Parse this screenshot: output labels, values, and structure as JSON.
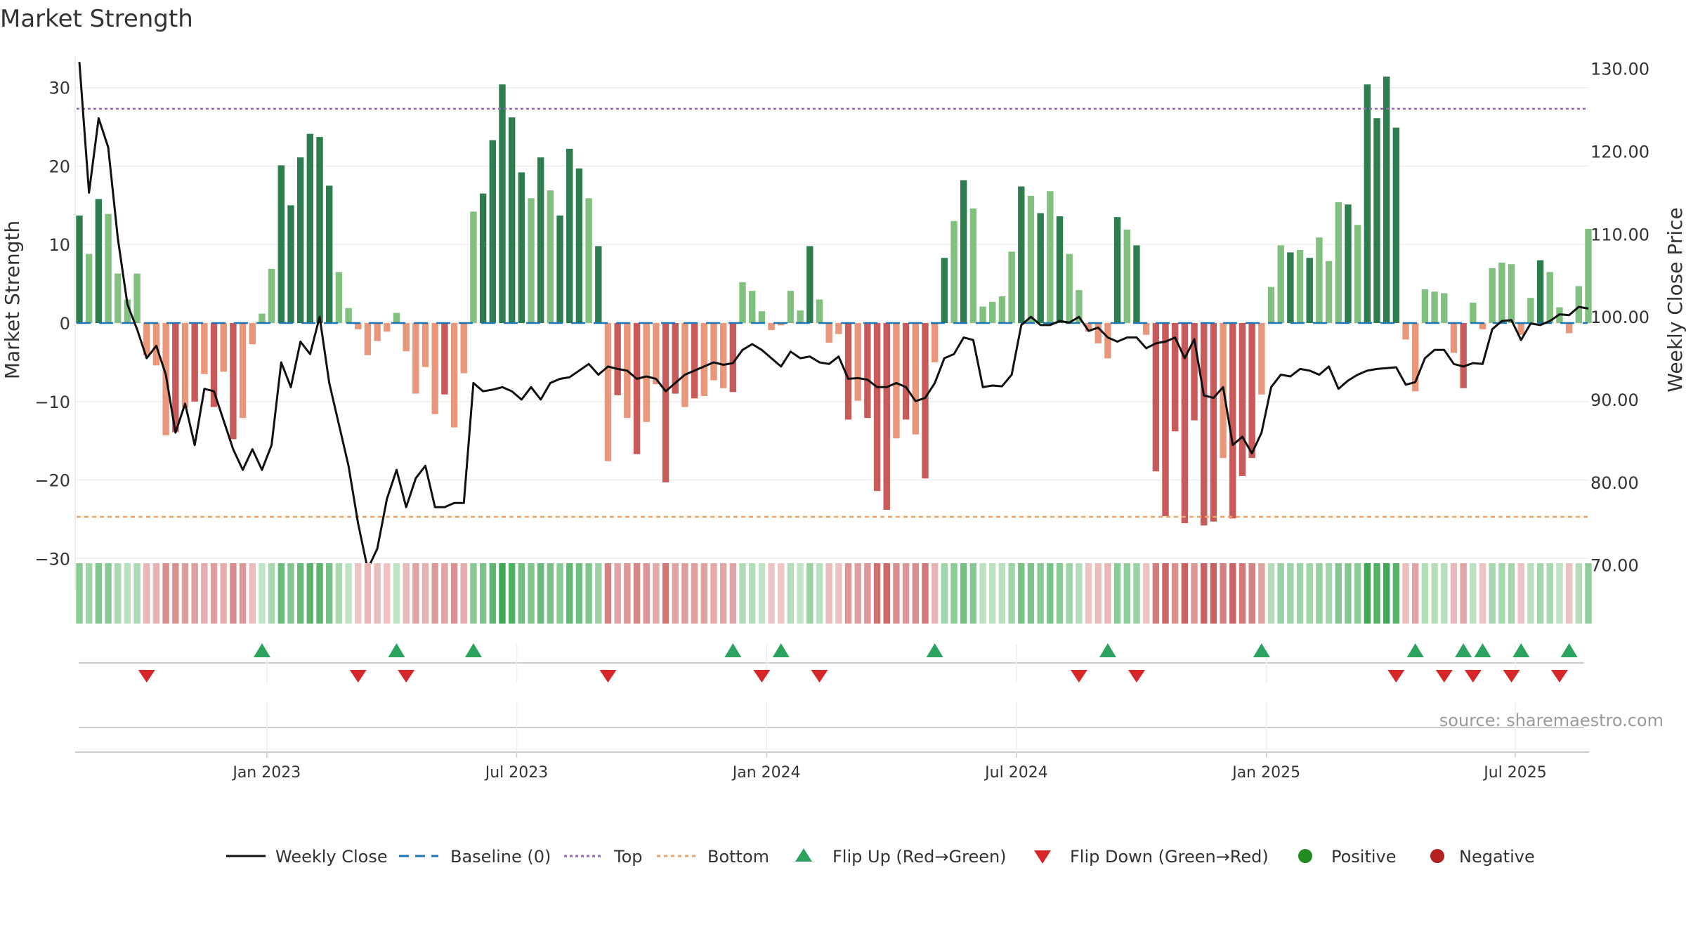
{
  "chart_data": {
    "type": "bar+line",
    "title": "Market Strength",
    "ylabel_left": "Market Strength",
    "ylabel_right": "Weekly Close Price",
    "ylim_left": [
      -34,
      34
    ],
    "ylim_right": [
      67.0,
      131.5
    ],
    "yticks_left": [
      "30",
      "20",
      "10",
      "0",
      "−10",
      "−20",
      "−30"
    ],
    "yticks_left_values": [
      30,
      20,
      10,
      0,
      -10,
      -20,
      -30
    ],
    "yticks_right": [
      "130.00",
      "120.00",
      "110.00",
      "100.00",
      "90.00",
      "80.00",
      "70.00"
    ],
    "yticks_right_values": [
      130,
      120,
      110,
      100,
      90,
      80,
      70
    ],
    "xticks": [
      "Jan 2023",
      "Jul 2023",
      "Jan 2024",
      "Jul 2024",
      "Jan 2025",
      "Jul 2025"
    ],
    "xticks_week_index": [
      19.5,
      45.5,
      71.5,
      97.5,
      123.5,
      149.4
    ],
    "top_threshold": 27.3,
    "bottom_threshold": -24.7,
    "strength": [
      13.7,
      8.8,
      15.8,
      13.9,
      6.3,
      3.0,
      6.3,
      -4.1,
      -5.4,
      -14.3,
      -13.9,
      -10.8,
      -10.0,
      -6.5,
      -10.7,
      -6.2,
      -14.8,
      -12.1,
      -2.7,
      1.2,
      6.9,
      20.1,
      15.0,
      21.1,
      24.1,
      23.7,
      17.5,
      6.5,
      1.9,
      -0.8,
      -4.1,
      -2.3,
      -1.1,
      1.3,
      -3.6,
      -9.0,
      -5.6,
      -11.6,
      -9.1,
      -13.3,
      -6.4,
      14.2,
      16.5,
      23.3,
      30.4,
      26.2,
      19.2,
      15.9,
      21.1,
      16.9,
      13.7,
      22.2,
      19.7,
      15.9,
      9.8,
      -17.6,
      -9.2,
      -12.1,
      -16.7,
      -12.6,
      -7.8,
      -20.3,
      -9.0,
      -10.7,
      -9.6,
      -9.3,
      -7.3,
      -8.3,
      -8.8,
      5.2,
      4.1,
      1.5,
      -0.9,
      -0.3,
      4.1,
      1.6,
      9.8,
      3.0,
      -2.5,
      -1.4,
      -12.3,
      -9.9,
      -12.1,
      -21.4,
      -23.8,
      -14.7,
      -12.3,
      -14.2,
      -19.8,
      -5.0,
      8.3,
      13.0,
      18.2,
      14.6,
      2.1,
      2.7,
      3.4,
      9.1,
      17.4,
      16.2,
      14.0,
      16.8,
      13.6,
      8.8,
      4.2,
      -1.1,
      -2.6,
      -4.5,
      13.5,
      11.9,
      9.9,
      -1.5,
      -18.9,
      -24.6,
      -13.8,
      -25.5,
      -12.4,
      -25.8,
      -25.3,
      -17.2,
      -24.9,
      -19.5,
      -17.2,
      -9.1,
      4.6,
      9.9,
      9.0,
      9.3,
      8.3,
      10.9,
      7.9,
      15.4,
      15.1,
      12.5,
      30.4,
      26.1,
      31.4,
      24.9,
      -2.1,
      -8.7,
      4.3,
      4.0,
      3.8,
      -3.8,
      -8.3,
      2.6,
      -0.8,
      7.0,
      7.7,
      7.5,
      -1.5,
      3.2,
      8.0,
      6.5,
      2.0,
      -1.3,
      4.7,
      12.0
    ],
    "close": [
      130.8,
      115.0,
      124.0,
      120.5,
      109.5,
      101.5,
      98.5,
      95.0,
      96.5,
      93.0,
      86.0,
      89.5,
      84.5,
      91.3,
      91.0,
      87.5,
      84.0,
      81.5,
      84.0,
      81.5,
      84.5,
      94.5,
      91.5,
      97.0,
      95.5,
      100.0,
      92.0,
      87.0,
      82.0,
      75.0,
      69.5,
      72.0,
      78.0,
      81.5,
      77.0,
      80.5,
      82.0,
      77.0,
      77.0,
      77.5,
      77.5,
      92.0,
      91.0,
      91.2,
      91.5,
      91.0,
      90.0,
      91.5,
      90.0,
      92.0,
      92.5,
      92.7,
      93.5,
      94.3,
      93.0,
      94.0,
      93.7,
      93.5,
      92.5,
      92.8,
      92.5,
      91.0,
      92.0,
      93.0,
      93.5,
      94.0,
      94.5,
      94.2,
      94.4,
      96.0,
      96.7,
      96.0,
      95.0,
      94.0,
      95.8,
      95.0,
      95.2,
      94.5,
      94.3,
      95.2,
      92.5,
      92.6,
      92.4,
      91.5,
      91.5,
      92.0,
      91.5,
      89.8,
      90.2,
      92.0,
      95.0,
      95.5,
      97.5,
      97.2,
      91.5,
      91.7,
      91.6,
      93.0,
      99.0,
      100.0,
      99.0,
      99.0,
      99.5,
      99.3,
      100.0,
      98.3,
      98.7,
      97.5,
      97.0,
      97.5,
      97.5,
      96.2,
      96.8,
      97.0,
      97.5,
      95.0,
      97.3,
      90.5,
      90.2,
      91.5,
      84.5,
      85.5,
      83.5,
      86.0,
      91.5,
      93.0,
      92.8,
      93.7,
      93.5,
      93.0,
      94.0,
      91.3,
      92.3,
      93.0,
      93.5,
      93.7,
      93.8,
      93.9,
      91.8,
      92.1,
      95.0,
      96.0,
      96.0,
      94.3,
      94.0,
      94.4,
      94.3,
      98.5,
      99.5,
      99.6,
      97.2,
      99.2,
      99.0,
      99.5,
      100.3,
      100.2,
      101.2,
      101.0
    ],
    "flip_up_weeks": [
      19,
      33,
      41,
      68,
      73,
      89,
      107,
      123,
      139,
      144,
      146,
      150,
      155
    ],
    "flip_down_weeks": [
      7,
      29,
      34,
      55,
      71,
      77,
      104,
      110,
      137,
      142,
      145,
      149,
      154
    ],
    "legend": [
      "Weekly Close",
      "Baseline (0)",
      "Top",
      "Bottom",
      "Flip Up (Red→Green)",
      "Flip Down (Green→Red)",
      "Positive",
      "Negative"
    ],
    "legend_position": "bottom-center",
    "source": "source: sharemaestro.com",
    "colors": {
      "pos_strong": "#2e7d4f",
      "pos_light": "#81c07f",
      "neg_strong": "#c95a5a",
      "neg_light": "#e8977a",
      "line": "#111111",
      "baseline": "#1f77b4",
      "top": "#9467bd",
      "bottom": "#f0a060",
      "flip_up": "#2ca25f",
      "flip_down": "#d62728",
      "positive_dot": "#228B22",
      "negative_dot": "#b22222"
    }
  }
}
